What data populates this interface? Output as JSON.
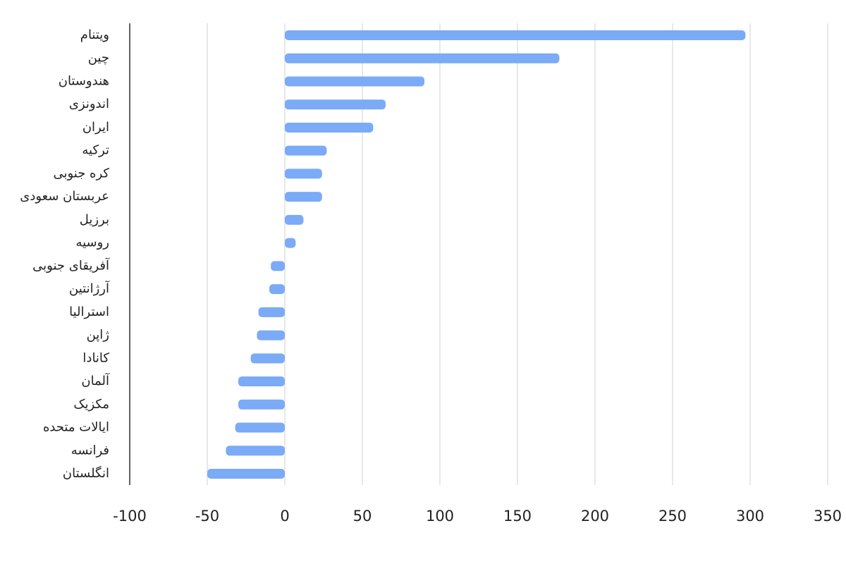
{
  "chart_data": {
    "type": "bar",
    "orientation": "horizontal",
    "categories": [
      "ویتنام",
      "چین",
      "هندوستان",
      "اندونزی",
      "ایران",
      "ترکیه",
      "کره جنوبی",
      "عربستان سعودی",
      "برزیل",
      "روسیه",
      "آفریقای جنوبی",
      "آرژانتین",
      "استرالیا",
      "ژاپن",
      "کانادا",
      "آلمان",
      "مکزیک",
      "ایالات متحده",
      "فرانسه",
      "انگلستان"
    ],
    "values": [
      297,
      177,
      90,
      65,
      57,
      27,
      24,
      24,
      12,
      7,
      -9,
      -10,
      -17,
      -18,
      -22,
      -30,
      -30,
      -32,
      -38,
      -50
    ],
    "color": "#7baaf7",
    "xlim": [
      -100,
      350
    ],
    "xticks": [
      -100,
      -50,
      0,
      50,
      100,
      150,
      200,
      250,
      300,
      350
    ],
    "grid": true
  }
}
